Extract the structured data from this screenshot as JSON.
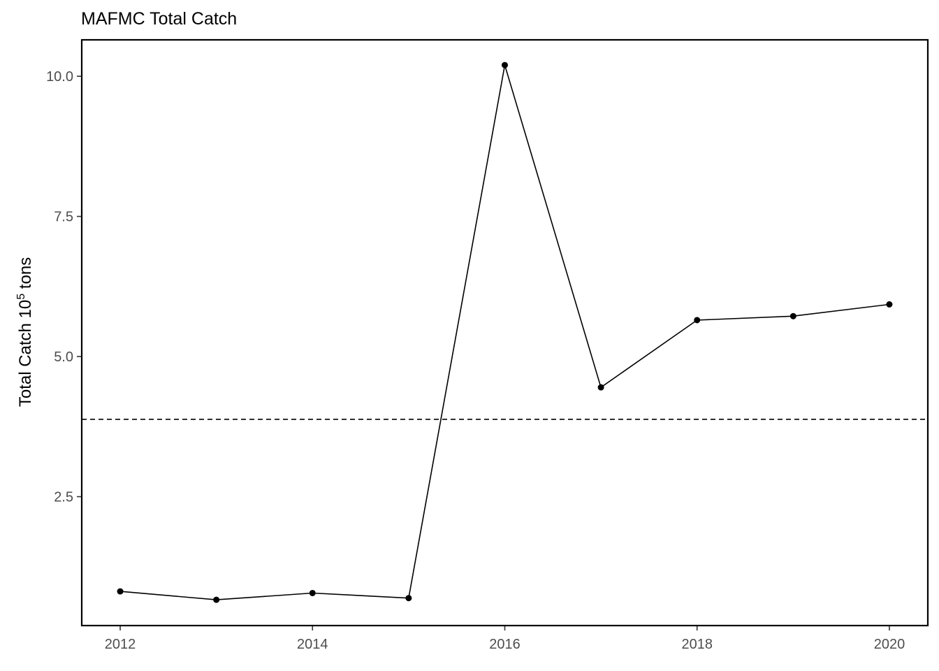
{
  "chart_data": {
    "type": "line",
    "title": "MAFMC Total Catch",
    "ylabel_main": "Total Catch 10",
    "ylabel_sup": "5",
    "ylabel_end": " tons",
    "x": [
      2012,
      2013,
      2014,
      2015,
      2016,
      2017,
      2018,
      2019,
      2020
    ],
    "y": [
      0.81,
      0.66,
      0.78,
      0.69,
      10.2,
      4.45,
      5.65,
      5.72,
      5.93
    ],
    "xlim": [
      2011.6,
      2020.4
    ],
    "ylim": [
      0.2,
      10.65
    ],
    "x_ticks": [
      2012,
      2014,
      2016,
      2018,
      2020
    ],
    "x_tick_labels": [
      "2012",
      "2014",
      "2016",
      "2018",
      "2020"
    ],
    "y_ticks": [
      2.5,
      5.0,
      7.5,
      10.0
    ],
    "y_tick_labels": [
      "2.5",
      "5.0",
      "7.5",
      "10.0"
    ],
    "reference_line": {
      "y": 3.88,
      "style": "dashed"
    },
    "grid": false,
    "legend": "none",
    "colors": {
      "line": "#000000",
      "points": "#000000",
      "frame": "#000000",
      "tick_text": "#4d4d4d"
    }
  }
}
